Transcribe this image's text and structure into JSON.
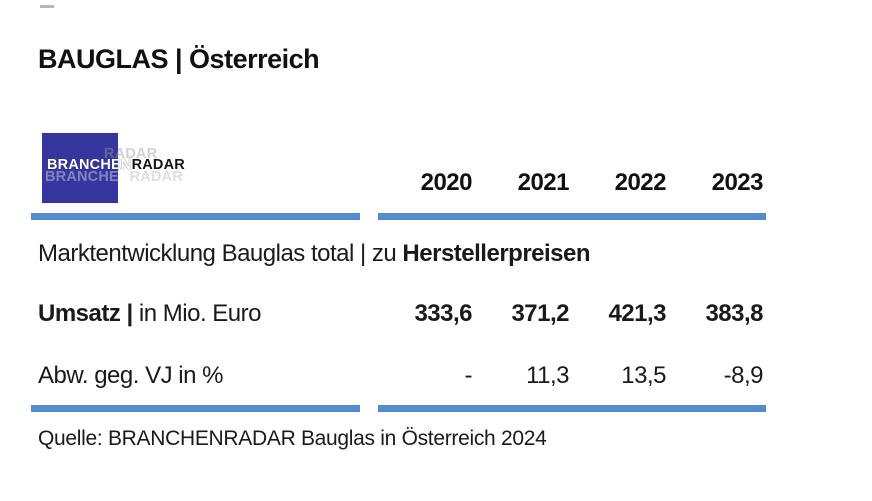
{
  "page": {
    "title": "BAUGLAS | Österreich",
    "source_line": "Quelle: BRANCHENRADAR Bauglas in Österreich 2024"
  },
  "logo": {
    "text_primary": "BRANCHEN",
    "text_secondary": "RADAR"
  },
  "table": {
    "year_headers": [
      "2020",
      "2021",
      "2022",
      "2023"
    ],
    "section_title_regular": "Marktentwicklung Bauglas total | zu ",
    "section_title_bold": "Herstellerpreisen",
    "rows": [
      {
        "label_bold": "Umsatz | ",
        "label_regular": "in Mio. Euro",
        "values": [
          "333,6",
          "371,2",
          "421,3",
          "383,8"
        ]
      },
      {
        "label_bold": "",
        "label_regular": "Abw. geg. VJ in %",
        "values": [
          "-",
          "11,3",
          "13,5",
          "-8,9"
        ]
      }
    ]
  },
  "colors": {
    "accent_bar_blue": "#548bcd",
    "logo_blue": "#36369e"
  },
  "chart_data": {
    "type": "table",
    "title": "Marktentwicklung Bauglas total | zu Herstellerpreisen",
    "categories": [
      "2020",
      "2021",
      "2022",
      "2023"
    ],
    "series": [
      {
        "name": "Umsatz | in Mio. Euro",
        "values": [
          333.6,
          371.2,
          421.3,
          383.8
        ]
      },
      {
        "name": "Abw. geg. VJ in %",
        "values": [
          null,
          11.3,
          13.5,
          -8.9
        ]
      }
    ],
    "source": "Quelle: BRANCHENRADAR Bauglas in Österreich 2024"
  }
}
